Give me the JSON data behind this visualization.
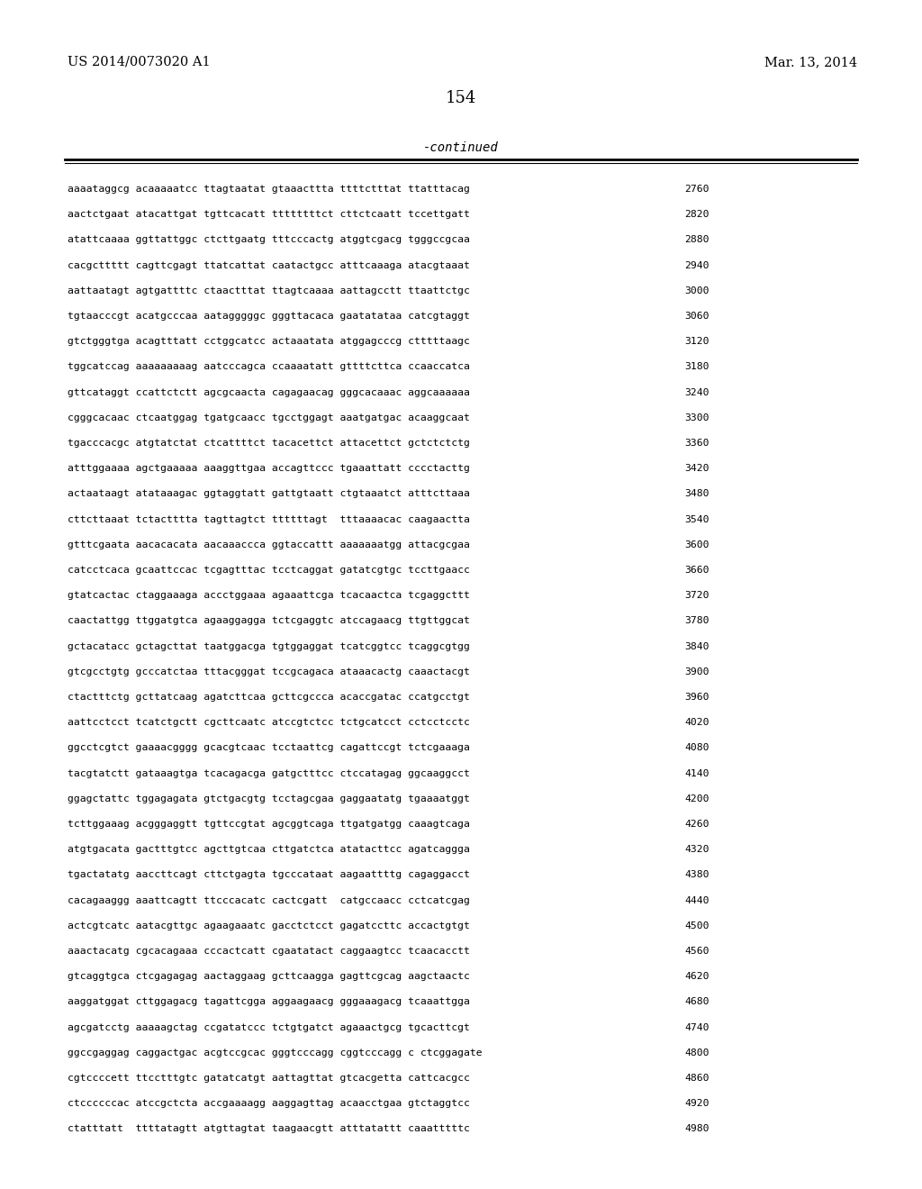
{
  "left_header": "US 2014/0073020 A1",
  "right_header": "Mar. 13, 2014",
  "page_number": "154",
  "continued_label": "-continued",
  "background_color": "#ffffff",
  "text_color": "#000000",
  "lines": [
    [
      "aaaataggcg acaaaaatcc ttagtaatat gtaaacttta ttttctttat ttatttacag",
      "2760"
    ],
    [
      "aactctgaat atacattgat tgttcacatt ttttttttct cttctcaatt tccettgatt",
      "2820"
    ],
    [
      "atattcaaaa ggttattggc ctcttgaatg tttcccactg atggtcgacg tgggccgcaa",
      "2880"
    ],
    [
      "cacgcttttt cagttcgagt ttatcattat caatactgcc atttcaaaga atacgtaaat",
      "2940"
    ],
    [
      "aattaatagt agtgattttc ctaactttat ttagtcaaaa aattagcctt ttaattctgc",
      "3000"
    ],
    [
      "tgtaacccgt acatgcccaa aatagggggc gggttacaca gaatatataa catcgtaggt",
      "3060"
    ],
    [
      "gtctgggtga acagtttatt cctggcatcc actaaatata atggagcccg ctttttaagc",
      "3120"
    ],
    [
      "tggcatccag aaaaaaaaag aatcccagca ccaaaatatt gttttcttca ccaaccatca",
      "3180"
    ],
    [
      "gttcataggt ccattctctt agcgcaacta cagagaacag gggcacaaac aggcaaaaaa",
      "3240"
    ],
    [
      "cgggcacaac ctcaatggag tgatgcaacc tgcctggagt aaatgatgac acaaggcaat",
      "3300"
    ],
    [
      "tgacccacgc atgtatctat ctcattttct tacacettct attacettct gctctctctg",
      "3360"
    ],
    [
      "atttggaaaa agctgaaaaa aaaggttgaa accagttccc tgaaattatt cccctacttg",
      "3420"
    ],
    [
      "actaataagt atataaagac ggtaggtatt gattgtaatt ctgtaaatct atttcttaaa",
      "3480"
    ],
    [
      "cttcttaaat tctactttta tagttagtct ttttttagt  tttaaaacac caagaactta",
      "3540"
    ],
    [
      "gtttcgaata aacacacata aacaaaccca ggtaccattt aaaaaaatgg attacgcgaa",
      "3600"
    ],
    [
      "catcctcaca gcaattccac tcgagtttac tcctcaggat gatatcgtgc tccttgaacc",
      "3660"
    ],
    [
      "gtatcactac ctaggaaaga accctggaaa agaaattcga tcacaactca tcgaggcttt",
      "3720"
    ],
    [
      "caactattgg ttggatgtca agaaggagga tctcgaggtc atccagaacg ttgttggcat",
      "3780"
    ],
    [
      "gctacatacc gctagcttat taatggacga tgtggaggat tcatcggtcc tcaggcgtgg",
      "3840"
    ],
    [
      "gtcgcctgtg gcccatctaa tttacgggat tccgcagaca ataaacactg caaactacgt",
      "3900"
    ],
    [
      "ctactttctg gcttatcaag agatcttcaa gcttcgccca acaccgatac ccatgcctgt",
      "3960"
    ],
    [
      "aattcctcct tcatctgctt cgcttcaatc atccgtctcc tctgcatcct cctcctcctc",
      "4020"
    ],
    [
      "ggcctcgtct gaaaacgggg gcacgtcaac tcctaattcg cagattccgt tctcgaaaga",
      "4080"
    ],
    [
      "tacgtatctt gataaagtga tcacagacga gatgctttcc ctccatagag ggcaaggcct",
      "4140"
    ],
    [
      "ggagctattc tggagagata gtctgacgtg tcctagcgaa gaggaatatg tgaaaatggt",
      "4200"
    ],
    [
      "tcttggaaag acgggaggtt tgttccgtat agcggtcaga ttgatgatgg caaagtcaga",
      "4260"
    ],
    [
      "atgtgacata gactttgtcc agcttgtcaa cttgatctca atatacttcc agatcaggga",
      "4320"
    ],
    [
      "tgactatatg aaccttcagt cttctgagta tgcccataat aagaattttg cagaggacct",
      "4380"
    ],
    [
      "cacagaaggg aaattcagtt ttcccacatc cactcgatt  catgccaacc cctcatcgag",
      "4440"
    ],
    [
      "actcgtcatc aatacgttgc agaagaaatc gacctctcct gagatccttc accactgtgt",
      "4500"
    ],
    [
      "aaactacatg cgcacagaaa cccactcatt cgaatatact caggaagtcc tcaacacctt",
      "4560"
    ],
    [
      "gtcaggtgca ctcgagagag aactaggaag gcttcaagga gagttcgcag aagctaactc",
      "4620"
    ],
    [
      "aaggatggat cttggagacg tagattcgga aggaagaacg gggaaagacg tcaaattgga",
      "4680"
    ],
    [
      "agcgatcctg aaaaagctag ccgatatccc tctgtgatct agaaactgcg tgcacttcgt",
      "4740"
    ],
    [
      "ggccgaggag caggactgac acgtccgcac gggtcccagg cggtcccagg c ctcggagate",
      "4800"
    ],
    [
      "cgtccccett ttcctttgtc gatatcatgt aattagttat gtcacgetta cattcacgcc",
      "4860"
    ],
    [
      "ctccccccac atccgctcta accgaaaagg aaggagttag acaacctgaa gtctaggtcc",
      "4920"
    ],
    [
      "ctatttatt  ttttatagtt atgttagtat taagaacgtt atttatattt caaatttttc",
      "4980"
    ]
  ]
}
